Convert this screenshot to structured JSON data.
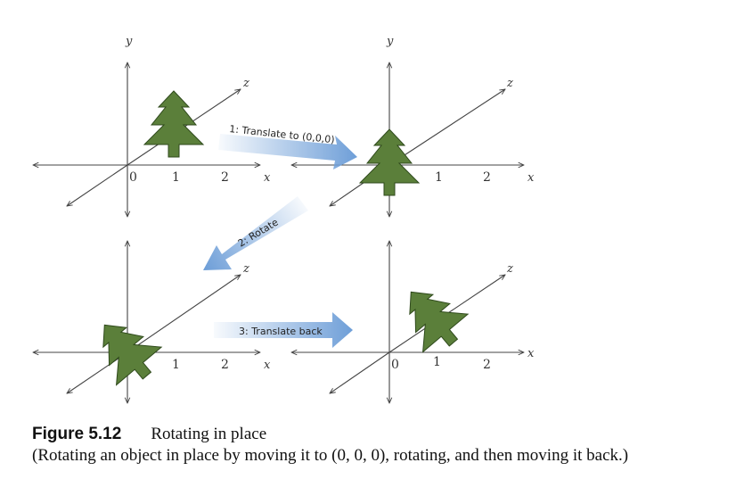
{
  "axis_labels": {
    "x": "x",
    "y": "y",
    "z": "z"
  },
  "tick_labels": [
    "0",
    "1",
    "2"
  ],
  "steps": {
    "translate_to_origin": "1: Translate to (0,0,0)",
    "rotate": "2: Rotate",
    "translate_back": "3: Translate back"
  },
  "colors": {
    "tree_fill": "#5b7f3a",
    "tree_outline": "#2f4a1c",
    "arrow": "#6f9fd8",
    "axes": "#444444"
  },
  "caption": {
    "number": "Figure 5.12",
    "title": "Rotating in place",
    "description": "(Rotating an object in place by moving it to (0, 0, 0), rotating, and then moving it back.)"
  }
}
